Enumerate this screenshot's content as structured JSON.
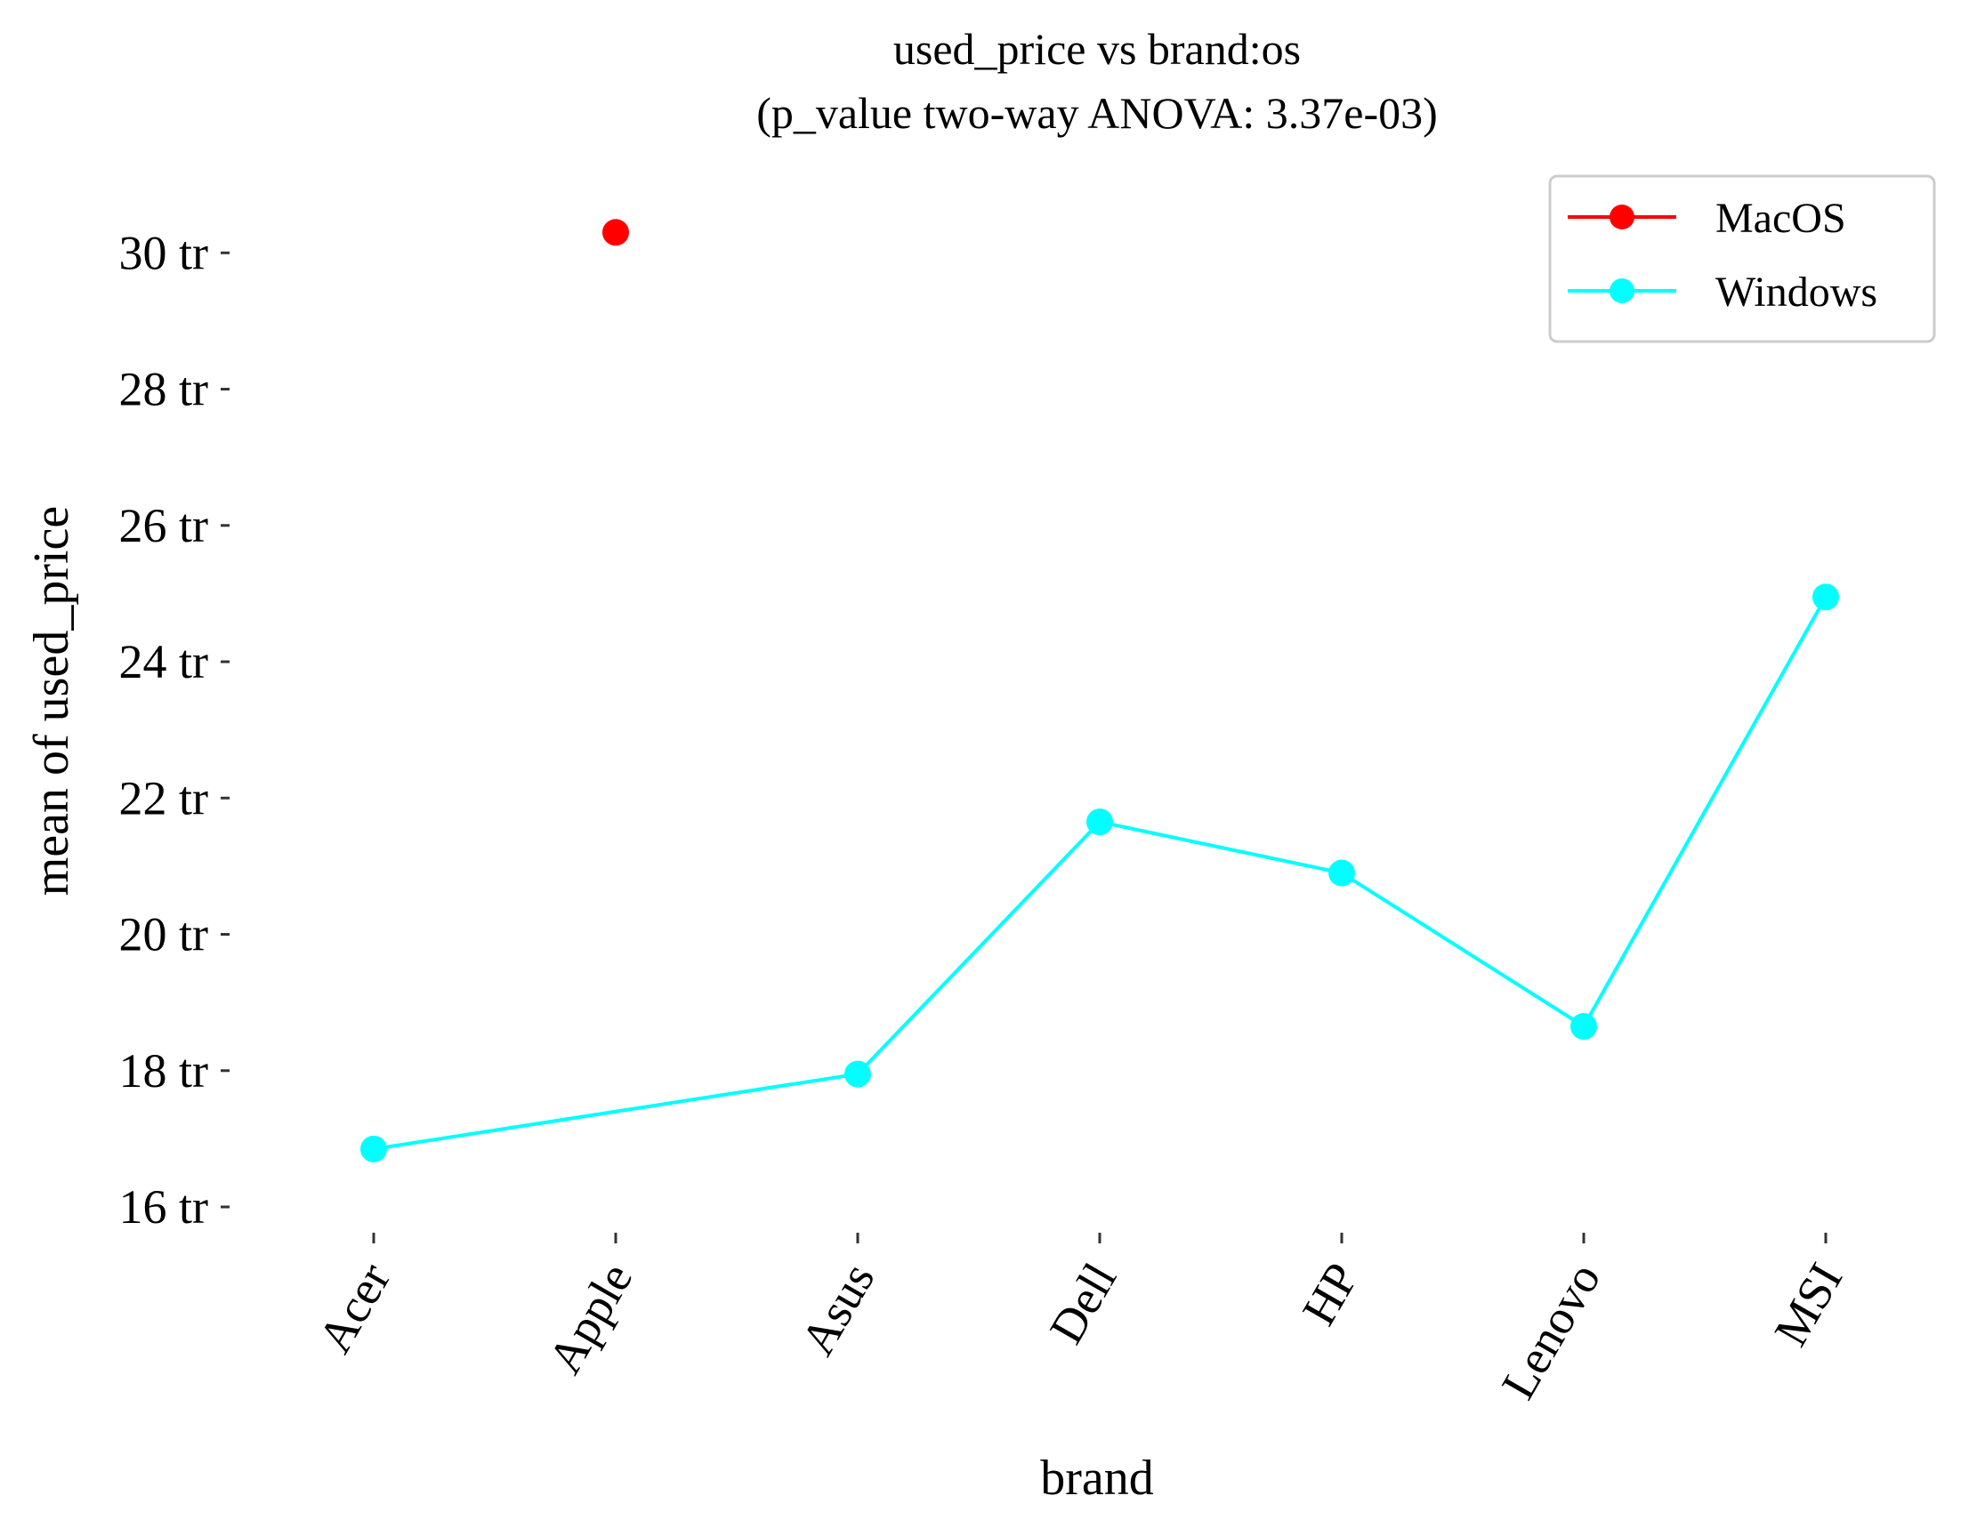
{
  "chart_data": {
    "type": "line",
    "title": "used_price vs brand:os",
    "subtitle": "(p_value two-way ANOVA: 3.37e-03)",
    "xlabel": "brand",
    "ylabel": "mean of used_price",
    "categories": [
      "Acer",
      "Apple",
      "Asus",
      "Dell",
      "HP",
      "Lenovo",
      "MSI"
    ],
    "y_ticks": [
      {
        "value": 16,
        "label": "16 tr"
      },
      {
        "value": 18,
        "label": "18 tr"
      },
      {
        "value": 20,
        "label": "20 tr"
      },
      {
        "value": 22,
        "label": "22 tr"
      },
      {
        "value": 24,
        "label": "24 tr"
      },
      {
        "value": 26,
        "label": "26 tr"
      },
      {
        "value": 28,
        "label": "28 tr"
      },
      {
        "value": 30,
        "label": "30 tr"
      }
    ],
    "ylim": [
      15.7,
      31.1
    ],
    "y_unit": "tr",
    "grid": false,
    "legend_position": "top-right",
    "series": [
      {
        "name": "MacOS",
        "color": "#ff0000",
        "values": [
          null,
          30.3,
          null,
          null,
          null,
          null,
          null
        ]
      },
      {
        "name": "Windows",
        "color": "#00ffff",
        "values": [
          16.85,
          null,
          17.95,
          21.65,
          20.9,
          18.65,
          24.95
        ]
      }
    ]
  }
}
